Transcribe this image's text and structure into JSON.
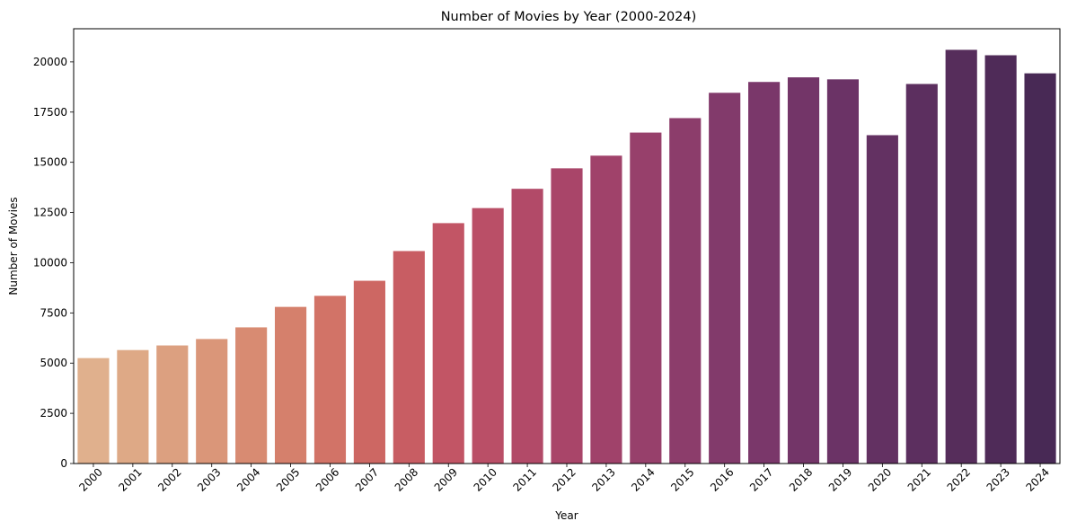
{
  "chart_data": {
    "type": "bar",
    "title": "Number of Movies by Year (2000-2024)",
    "xlabel": "Year",
    "ylabel": "Number of Movies",
    "categories": [
      "2000",
      "2001",
      "2002",
      "2003",
      "2004",
      "2005",
      "2006",
      "2007",
      "2008",
      "2009",
      "2010",
      "2011",
      "2012",
      "2013",
      "2014",
      "2015",
      "2016",
      "2017",
      "2018",
      "2019",
      "2020",
      "2021",
      "2022",
      "2023",
      "2024"
    ],
    "values": [
      5250,
      5650,
      5880,
      6200,
      6780,
      7800,
      8350,
      9100,
      10580,
      11970,
      12720,
      13680,
      14700,
      15330,
      16480,
      17200,
      18460,
      19000,
      19230,
      19130,
      16350,
      18900,
      20600,
      20330,
      19430
    ],
    "ylim": [
      0,
      21650
    ],
    "yticks": [
      0,
      2500,
      5000,
      7500,
      10000,
      12500,
      15000,
      17500,
      20000
    ],
    "colors": [
      "#e0b08d",
      "#dea986",
      "#dca080",
      "#da9679",
      "#d88b72",
      "#d5806c",
      "#d27367",
      "#cd6763",
      "#c85d63",
      "#c25565",
      "#ba4f67",
      "#b24a68",
      "#a94569",
      "#a0426a",
      "#97406b",
      "#8c3d6b",
      "#823a6b",
      "#7a376a",
      "#733568",
      "#6b3366",
      "#633162",
      "#5c2f5f",
      "#562d5b",
      "#4f2b58",
      "#482955"
    ],
    "grid": false,
    "legend": "none"
  }
}
